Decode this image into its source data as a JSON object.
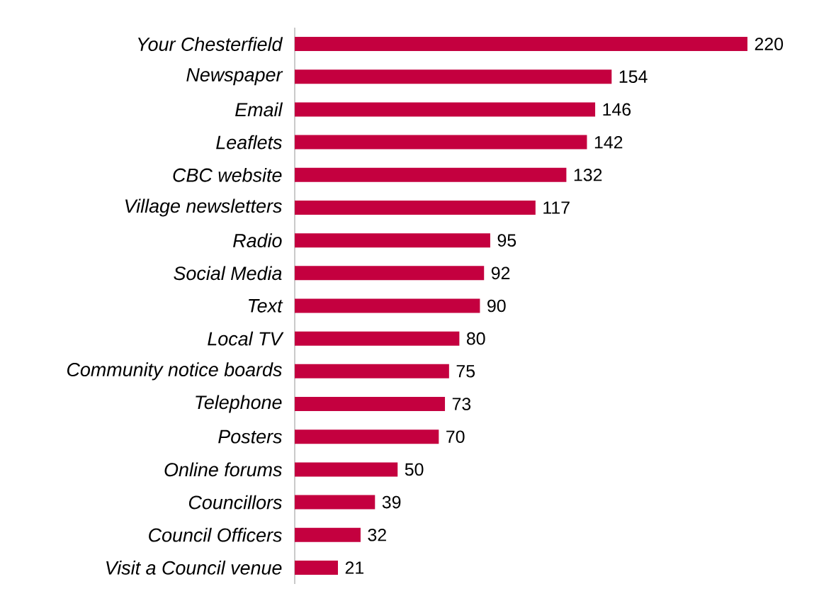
{
  "chart_data": {
    "type": "bar",
    "orientation": "horizontal",
    "data_labels": true,
    "color": "#c4003f",
    "categories": [
      "Your Chesterfield",
      "Newspaper",
      "Email",
      "Leaflets",
      "CBC website",
      "Village newsletters",
      "Radio",
      "Social Media",
      "Text",
      "Local TV",
      "Community notice boards",
      "Telephone",
      "Posters",
      "Online forums",
      "Councillors",
      "Council Officers",
      "Visit a Council venue"
    ],
    "values": [
      220,
      154,
      146,
      142,
      132,
      117,
      95,
      92,
      90,
      80,
      75,
      73,
      70,
      50,
      39,
      32,
      21
    ]
  }
}
